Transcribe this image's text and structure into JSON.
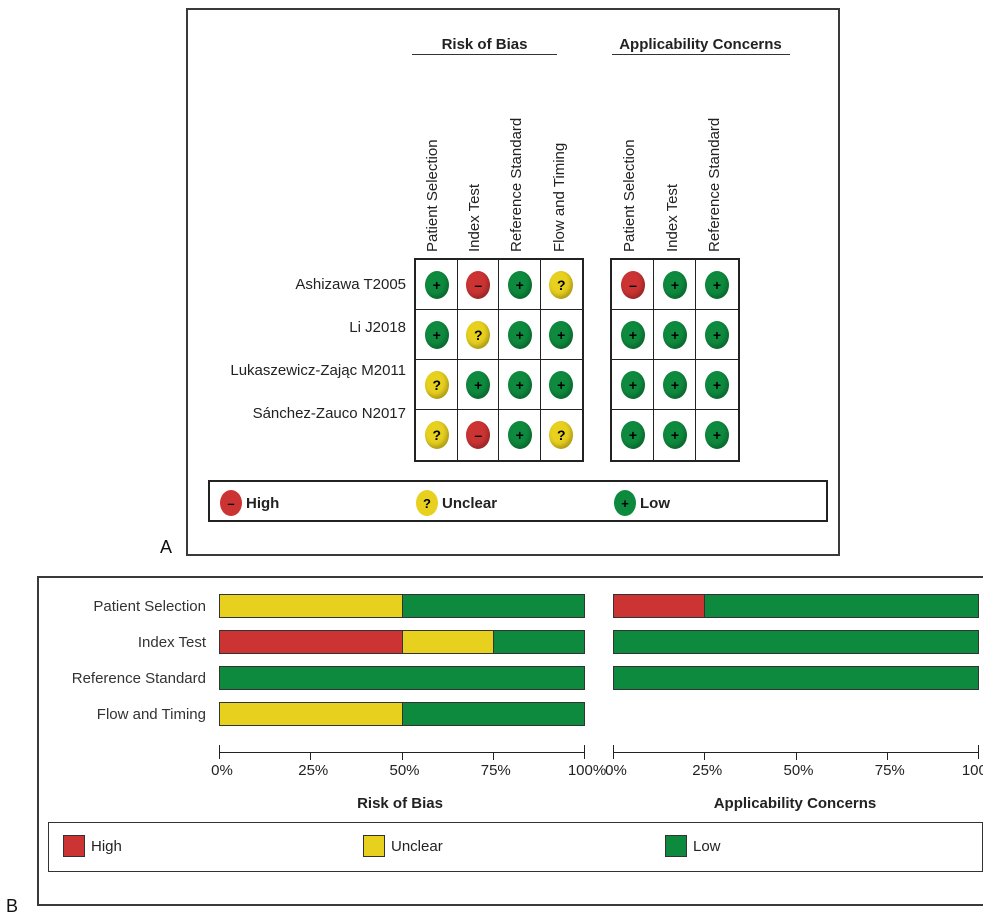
{
  "panel_labels": {
    "a": "A",
    "b": "B"
  },
  "colors": {
    "high": "#cc3333",
    "unclear": "#e8d01e",
    "low": "#0e8a3e"
  },
  "symbols": {
    "high": "–",
    "unclear": "?",
    "low": "+"
  },
  "chart_data": [
    {
      "type": "table",
      "groups": [
        {
          "title": "Risk of Bias",
          "columns": [
            "Patient Selection",
            "Index Test",
            "Reference Standard",
            "Flow and Timing"
          ]
        },
        {
          "title": "Applicability Concerns",
          "columns": [
            "Patient Selection",
            "Index Test",
            "Reference Standard"
          ]
        }
      ],
      "rows": [
        {
          "study": "Ashizawa T2005",
          "bias": [
            "low",
            "high",
            "low",
            "unclear"
          ],
          "applicability": [
            "high",
            "low",
            "low"
          ]
        },
        {
          "study": "Li J2018",
          "bias": [
            "low",
            "unclear",
            "low",
            "low"
          ],
          "applicability": [
            "low",
            "low",
            "low"
          ]
        },
        {
          "study": "Lukaszewicz-Zając M2011",
          "bias": [
            "unclear",
            "low",
            "low",
            "low"
          ],
          "applicability": [
            "low",
            "low",
            "low"
          ]
        },
        {
          "study": "Sánchez-Zauco N2017",
          "bias": [
            "unclear",
            "high",
            "low",
            "unclear"
          ],
          "applicability": [
            "low",
            "low",
            "low"
          ]
        }
      ],
      "legend": [
        {
          "key": "high",
          "label": "High"
        },
        {
          "key": "unclear",
          "label": "Unclear"
        },
        {
          "key": "low",
          "label": "Low"
        }
      ]
    },
    {
      "type": "bar",
      "orientation": "horizontal",
      "stacked": true,
      "title": "Risk of Bias",
      "categories": [
        "Patient Selection",
        "Index Test",
        "Reference Standard",
        "Flow and Timing"
      ],
      "series": [
        {
          "name": "High",
          "values": [
            0,
            50,
            0,
            0
          ]
        },
        {
          "name": "Unclear",
          "values": [
            50,
            25,
            0,
            50
          ]
        },
        {
          "name": "Low",
          "values": [
            50,
            25,
            100,
            50
          ]
        }
      ],
      "xlim": [
        0,
        100
      ],
      "xticks": [
        "0%",
        "25%",
        "50%",
        "75%",
        "100%"
      ]
    },
    {
      "type": "bar",
      "orientation": "horizontal",
      "stacked": true,
      "title": "Applicability Concerns",
      "categories": [
        "Patient Selection",
        "Index Test",
        "Reference Standard"
      ],
      "series": [
        {
          "name": "High",
          "values": [
            25,
            0,
            0
          ]
        },
        {
          "name": "Unclear",
          "values": [
            0,
            0,
            0
          ]
        },
        {
          "name": "Low",
          "values": [
            75,
            100,
            100
          ]
        }
      ],
      "xlim": [
        0,
        100
      ],
      "xticks": [
        "0%",
        "25%",
        "50%",
        "75%",
        "100%"
      ]
    }
  ],
  "legend_b": [
    {
      "key": "high",
      "label": "High"
    },
    {
      "key": "unclear",
      "label": "Unclear"
    },
    {
      "key": "low",
      "label": "Low"
    }
  ]
}
